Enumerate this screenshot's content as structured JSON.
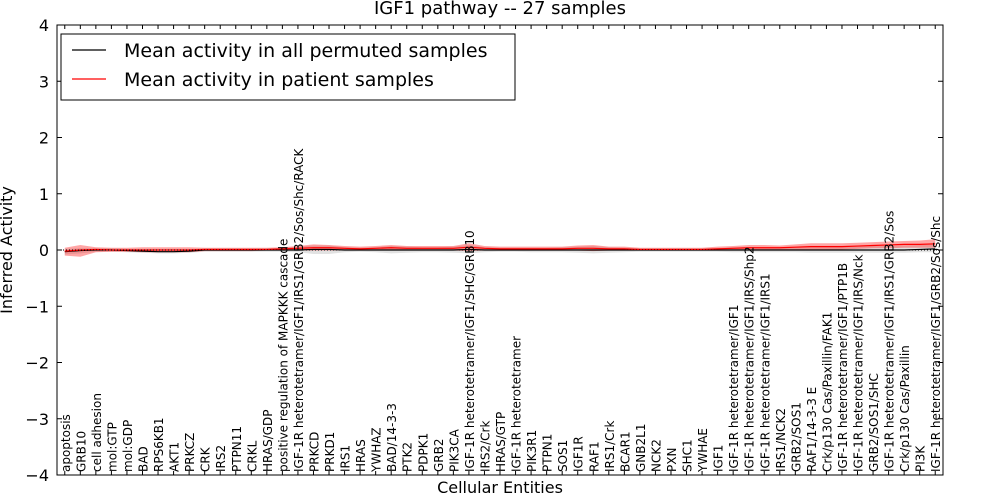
{
  "chart_data": {
    "type": "line",
    "title": "IGF1 pathway -- 27 samples",
    "xlabel": "Cellular Entities",
    "ylabel": "Inferred Activity",
    "ylim": [
      -4,
      4
    ],
    "yticks": [
      -4,
      -3,
      -2,
      -1,
      0,
      1,
      2,
      3,
      4
    ],
    "ytick_labels": [
      "−4",
      "−3",
      "−2",
      "−1",
      "0",
      "1",
      "2",
      "3",
      "4"
    ],
    "legend_position": "top-left",
    "categories": [
      "apoptosis",
      "GRB10",
      "cell adhesion",
      "mol:GTP",
      "mol:GDP",
      "BAD",
      "RPS6KB1",
      "AKT1",
      "PRKCZ",
      "CRK",
      "IRS2",
      "PTPN11",
      "CRKL",
      "HRAS/GDP",
      "positive regulation of MAPKKK cascade",
      "IGF-1R heterotetramer/IGF1/IRS1/GRB2/Sos/Shc/RACK",
      "PRKCD",
      "PRKD1",
      "IRS1",
      "HRAS",
      "YWHAZ",
      "BAD/14-3-3",
      "PTK2",
      "PDPK1",
      "GRB2",
      "PIK3CA",
      "IGF-1R heterotetramer/IGF1/SHC/GRB10",
      "IRS2/Crk",
      "HRAS/GTP",
      "IGF-1R heterotetramer",
      "PIK3R1",
      "PTPN1",
      "SOS1",
      "IGF1R",
      "RAF1",
      "IRS1/Crk",
      "BCAR1",
      "GNB2L1",
      "NCK2",
      "PXN",
      "SHC1",
      "YWHAE",
      "IGF1",
      "IGF-1R heterotetramer/IGF1",
      "IGF-1R heterotetramer/IGF1/IRS/Shp2",
      "IGF-1R heterotetramer/IGF1/IRS1",
      "IRS1/NCK2",
      "GRB2/SOS1",
      "RAF1/14-3-3 E",
      "Crk/p130 Cas/Paxillin/FAK1",
      "IGF-1R heterotetramer/IGF1/PTP1B",
      "IGF-1R heterotetramer/IGF1/IRS/Nck",
      "GRB2/SOS1/SHC",
      "IGF-1R heterotetramer/IGF1/IRS1/GRB2/Sos",
      "Crk/p130 Cas/Paxillin",
      "PI3K",
      "IGF-1R heterotetramer/IGF1/GRB2/Sos/Shc"
    ],
    "series": [
      {
        "name": "Mean activity in all permuted samples",
        "color": "#000000",
        "values": [
          -0.03,
          -0.01,
          0,
          0,
          -0.01,
          -0.02,
          -0.03,
          -0.03,
          -0.02,
          0,
          0,
          0,
          0,
          0,
          0,
          0,
          0.01,
          0.01,
          0,
          0,
          0,
          0,
          0,
          0,
          0,
          0,
          0.01,
          0,
          0,
          0,
          0,
          0,
          0,
          0,
          0,
          0,
          0,
          0,
          0,
          0,
          0,
          0,
          0,
          0,
          0,
          0,
          0,
          0,
          0,
          0,
          0,
          0,
          0,
          0,
          0,
          0.01,
          0.02
        ],
        "band_lower": [
          -0.08,
          -0.06,
          -0.03,
          -0.03,
          -0.04,
          -0.05,
          -0.06,
          -0.06,
          -0.05,
          -0.03,
          -0.03,
          -0.03,
          -0.03,
          -0.03,
          -0.03,
          -0.04,
          -0.07,
          -0.07,
          -0.04,
          -0.03,
          -0.04,
          -0.06,
          -0.05,
          -0.04,
          -0.04,
          -0.05,
          -0.06,
          -0.04,
          -0.03,
          -0.03,
          -0.04,
          -0.04,
          -0.04,
          -0.05,
          -0.06,
          -0.05,
          -0.04,
          -0.03,
          -0.03,
          -0.03,
          -0.03,
          -0.03,
          -0.03,
          -0.04,
          -0.04,
          -0.04,
          -0.04,
          -0.04,
          -0.05,
          -0.05,
          -0.05,
          -0.05,
          -0.05,
          -0.05,
          -0.05,
          -0.04,
          -0.04
        ],
        "band_upper": [
          0.02,
          0.03,
          0.03,
          0.03,
          0.02,
          0.01,
          0,
          0,
          0.01,
          0.03,
          0.03,
          0.03,
          0.03,
          0.03,
          0.04,
          0.06,
          0.08,
          0.08,
          0.05,
          0.04,
          0.05,
          0.07,
          0.06,
          0.05,
          0.05,
          0.06,
          0.09,
          0.05,
          0.04,
          0.04,
          0.04,
          0.04,
          0.05,
          0.06,
          0.07,
          0.05,
          0.04,
          0.03,
          0.03,
          0.03,
          0.03,
          0.03,
          0.03,
          0.05,
          0.05,
          0.05,
          0.05,
          0.05,
          0.06,
          0.06,
          0.06,
          0.06,
          0.07,
          0.07,
          0.08,
          0.09,
          0.1
        ]
      },
      {
        "name": "Mean activity in patient samples",
        "color": "#ff0000",
        "values": [
          -0.02,
          0,
          0.01,
          0,
          0,
          0,
          0,
          0,
          0,
          0.01,
          0.01,
          0.01,
          0.01,
          0.01,
          0.02,
          0.03,
          0.04,
          0.04,
          0.03,
          0.02,
          0.03,
          0.04,
          0.03,
          0.03,
          0.03,
          0.03,
          0.05,
          0.03,
          0.02,
          0.02,
          0.02,
          0.02,
          0.02,
          0.03,
          0.03,
          0.02,
          0.02,
          0.01,
          0.01,
          0.01,
          0.01,
          0.01,
          0.02,
          0.03,
          0.04,
          0.04,
          0.04,
          0.05,
          0.06,
          0.06,
          0.06,
          0.07,
          0.08,
          0.09,
          0.1,
          0.1,
          0.11
        ],
        "band_lower": [
          -0.1,
          -0.12,
          -0.04,
          -0.03,
          -0.03,
          -0.04,
          -0.04,
          -0.04,
          -0.04,
          -0.02,
          -0.02,
          -0.02,
          -0.02,
          -0.01,
          -0.01,
          -0.01,
          -0.01,
          -0.01,
          -0.01,
          -0.01,
          -0.01,
          -0.01,
          -0.01,
          0,
          -0.01,
          -0.01,
          -0.02,
          -0.01,
          -0.01,
          -0.01,
          -0.01,
          -0.01,
          -0.01,
          -0.01,
          -0.02,
          -0.01,
          -0.01,
          -0.01,
          -0.01,
          -0.01,
          -0.01,
          -0.01,
          -0.01,
          0,
          0,
          0,
          0.01,
          0.01,
          0.01,
          0.01,
          0.01,
          0.02,
          0.03,
          0.03,
          0.04,
          0.04,
          0.04
        ],
        "band_upper": [
          0.04,
          0.09,
          0.05,
          0.04,
          0.04,
          0.05,
          0.05,
          0.05,
          0.05,
          0.04,
          0.04,
          0.04,
          0.04,
          0.04,
          0.05,
          0.07,
          0.1,
          0.09,
          0.07,
          0.06,
          0.07,
          0.09,
          0.07,
          0.07,
          0.07,
          0.07,
          0.12,
          0.07,
          0.06,
          0.06,
          0.06,
          0.06,
          0.06,
          0.08,
          0.09,
          0.06,
          0.06,
          0.04,
          0.04,
          0.04,
          0.04,
          0.04,
          0.06,
          0.07,
          0.09,
          0.09,
          0.08,
          0.1,
          0.12,
          0.12,
          0.12,
          0.13,
          0.14,
          0.15,
          0.16,
          0.17,
          0.19
        ]
      }
    ]
  }
}
